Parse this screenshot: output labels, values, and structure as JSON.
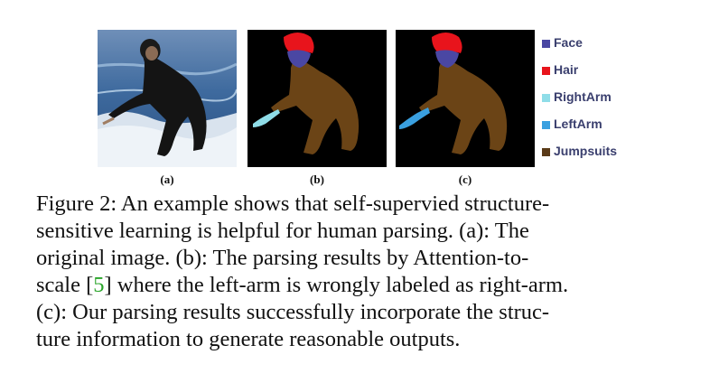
{
  "subfigures": [
    {
      "label": "(a)"
    },
    {
      "label": "(b)"
    },
    {
      "label": "(c)"
    }
  ],
  "legend": [
    {
      "label": "Face",
      "color": "#4a47a3"
    },
    {
      "label": "Hair",
      "color": "#e8141c"
    },
    {
      "label": "RightArm",
      "color": "#8fdde8"
    },
    {
      "label": "LeftArm",
      "color": "#3aa0e0"
    },
    {
      "label": "Jumpsuits",
      "color": "#5a3a18"
    }
  ],
  "segmentation_colors": {
    "background": "#000000",
    "face": "#4a47a3",
    "hair": "#e8141c",
    "right_arm": "#8fdde8",
    "left_arm": "#3aa0e0",
    "jumpsuits": "#6b4416"
  },
  "caption": {
    "l1": "Figure 2:  An example shows that self-supervied structure-",
    "l2": "sensitive learning is helpful for human parsing.  (a):  The",
    "l3": "original image.  (b):  The parsing results by Attention-to-",
    "l4_pre": "scale [",
    "l4_cite": "5",
    "l4_post": "] where the left-arm is wrongly labeled as right-arm.",
    "l5": "(c):  Our parsing results successfully incorporate the struc-",
    "l6": "ture information to generate reasonable outputs."
  }
}
